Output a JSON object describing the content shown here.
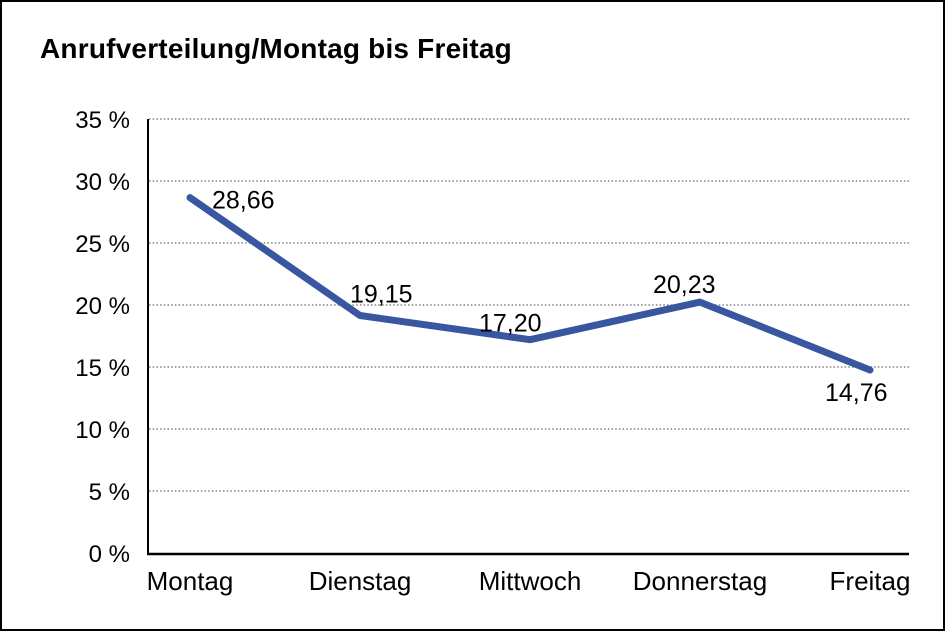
{
  "window": {
    "background": "#ffffff",
    "border_color": "#000000"
  },
  "chart_data": {
    "type": "line",
    "title": "Anrufverteilung/Montag bis Freitag",
    "categories": [
      "Montag",
      "Dienstag",
      "Mittwoch",
      "Donnerstag",
      "Freitag"
    ],
    "values": [
      28.66,
      19.15,
      17.2,
      20.23,
      14.76
    ],
    "data_labels": [
      "28,66",
      "19,15",
      "17,20",
      "20,23",
      "14,76"
    ],
    "y_ticks": [
      "0 %",
      "5 %",
      "10 %",
      "15 %",
      "20 %",
      "25 %",
      "30 %",
      "35 %"
    ],
    "y_tick_step": 5,
    "ylim": [
      0,
      35
    ],
    "xlabel": "",
    "ylabel": "",
    "legend": "none",
    "grid": "horizontal-dotted",
    "line_color": "#3957A0",
    "grid_color": "#666666",
    "axis_color": "#000000",
    "text_color": "#000000"
  }
}
